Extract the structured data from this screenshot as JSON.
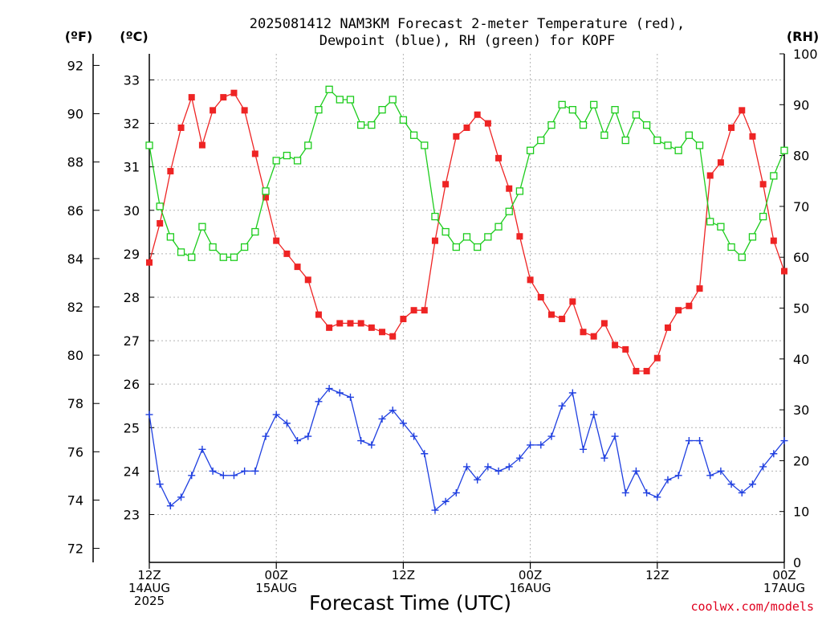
{
  "title_line1": "2025081412 NAM3KM Forecast 2-meter Temperature (red),",
  "title_line2": "Dewpoint (blue), RH (green) for KOPF",
  "units": {
    "f": "(ºF)",
    "c": "(ºC)",
    "rh": "(RH)"
  },
  "xlabel": "Forecast Time (UTC)",
  "credit": "coolwx.com/models",
  "colors": {
    "temp": "#ee2424",
    "dewpoint": "#1f3fe0",
    "rh": "#1ccc1c"
  },
  "chart_data": {
    "type": "line",
    "title": "2025081412 NAM3KM Forecast 2-meter Temperature (red), Dewpoint (blue), RH (green) for KOPF",
    "xlabel": "Forecast Time (UTC)",
    "x_unit": "forecast hour from 2025-08-14 12Z",
    "xlim": [
      0,
      60
    ],
    "x_ticks": [
      {
        "hour": 0,
        "lines": [
          "12Z",
          "14AUG",
          "2025"
        ]
      },
      {
        "hour": 12,
        "lines": [
          "00Z",
          "15AUG"
        ]
      },
      {
        "hour": 24,
        "lines": [
          "12Z"
        ]
      },
      {
        "hour": 36,
        "lines": [
          "00Z",
          "16AUG"
        ]
      },
      {
        "hour": 48,
        "lines": [
          "12Z"
        ]
      },
      {
        "hour": 60,
        "lines": [
          "00Z",
          "17AUG"
        ]
      }
    ],
    "y_axes": {
      "fahrenheit": {
        "label": "(ºF)",
        "ticks": [
          "72",
          "74",
          "76",
          "78",
          "80",
          "82",
          "84",
          "86",
          "88",
          "90",
          "92"
        ]
      },
      "celsius": {
        "label": "(ºC)",
        "ylim": [
          21.9,
          33.6
        ],
        "ticks": [
          "23",
          "24",
          "25",
          "26",
          "27",
          "28",
          "29",
          "30",
          "31",
          "32",
          "33"
        ]
      },
      "rh": {
        "label": "(RH)",
        "ylim": [
          0,
          100
        ],
        "ticks": [
          "0",
          "10",
          "20",
          "30",
          "40",
          "50",
          "60",
          "70",
          "80",
          "90",
          "100"
        ]
      }
    },
    "grid": true,
    "series": [
      {
        "axis": "celsius",
        "marker": "filled-square",
        "x": [
          0,
          1,
          2,
          3,
          4,
          5,
          6,
          7,
          8,
          9,
          10,
          11,
          12,
          13,
          14,
          15,
          16,
          17,
          18,
          19,
          20,
          21,
          22,
          23,
          24,
          25,
          26,
          27,
          28,
          29,
          30,
          31,
          32,
          33,
          34,
          35,
          36,
          37,
          38,
          39,
          40,
          41,
          42,
          43,
          44,
          45,
          46,
          47,
          48,
          49,
          50,
          51,
          52,
          53,
          54,
          55,
          56,
          57,
          58,
          59,
          60
        ],
        "y": [
          28.8,
          29.7,
          30.9,
          31.9,
          32.6,
          31.5,
          32.3,
          32.6,
          32.7,
          32.3,
          31.3,
          30.3,
          29.3,
          29.0,
          28.7,
          28.4,
          27.6,
          27.3,
          27.4,
          27.4,
          27.4,
          27.3,
          27.2,
          27.1,
          27.5,
          27.7,
          27.7,
          29.3,
          30.6,
          31.7,
          31.9,
          32.2,
          32.0,
          31.2,
          30.5,
          29.4,
          28.4,
          28.0,
          27.6,
          27.5,
          27.9,
          27.2,
          27.1,
          27.4,
          26.9,
          26.8,
          26.3,
          26.3,
          26.6,
          27.3,
          27.7,
          27.8,
          28.2,
          30.8,
          31.1,
          31.9,
          32.3,
          31.7,
          30.6,
          29.3,
          28.6
        ]
      },
      {
        "axis": "celsius",
        "marker": "plus",
        "x": [
          0,
          1,
          2,
          3,
          4,
          5,
          6,
          7,
          8,
          9,
          10,
          11,
          12,
          13,
          14,
          15,
          16,
          17,
          18,
          19,
          20,
          21,
          22,
          23,
          24,
          25,
          26,
          27,
          28,
          29,
          30,
          31,
          32,
          33,
          34,
          35,
          36,
          37,
          38,
          39,
          40,
          41,
          42,
          43,
          44,
          45,
          46,
          47,
          48,
          49,
          50,
          51,
          52,
          53,
          54,
          55,
          56,
          57,
          58,
          59,
          60
        ],
        "y": [
          25.3,
          23.7,
          23.2,
          23.4,
          23.9,
          24.5,
          24.0,
          23.9,
          23.9,
          24.0,
          24.0,
          24.8,
          25.3,
          25.1,
          24.7,
          24.8,
          25.6,
          25.9,
          25.8,
          25.7,
          24.7,
          24.6,
          25.2,
          25.4,
          25.1,
          24.8,
          24.4,
          23.1,
          23.3,
          23.5,
          24.1,
          23.8,
          24.1,
          24.0,
          24.1,
          24.3,
          24.6,
          24.6,
          24.8,
          25.5,
          25.8,
          24.5,
          25.3,
          24.3,
          24.8,
          23.5,
          24.0,
          23.5,
          23.4,
          23.8,
          23.9,
          24.7,
          24.7,
          23.9,
          24.0,
          23.7,
          23.5,
          23.7,
          24.1,
          24.4,
          24.7
        ]
      },
      {
        "axis": "rh",
        "marker": "open-square",
        "x": [
          0,
          1,
          2,
          3,
          4,
          5,
          6,
          7,
          8,
          9,
          10,
          11,
          12,
          13,
          14,
          15,
          16,
          17,
          18,
          19,
          20,
          21,
          22,
          23,
          24,
          25,
          26,
          27,
          28,
          29,
          30,
          31,
          32,
          33,
          34,
          35,
          36,
          37,
          38,
          39,
          40,
          41,
          42,
          43,
          44,
          45,
          46,
          47,
          48,
          49,
          50,
          51,
          52,
          53,
          54,
          55,
          56,
          57,
          58,
          59,
          60
        ],
        "y": [
          82,
          70,
          64,
          61,
          60,
          66,
          62,
          60,
          60,
          62,
          65,
          73,
          79,
          80,
          79,
          82,
          89,
          93,
          91,
          91,
          86,
          86,
          89,
          91,
          87,
          84,
          82,
          68,
          65,
          62,
          64,
          62,
          64,
          66,
          69,
          73,
          81,
          83,
          86,
          90,
          89,
          86,
          90,
          84,
          89,
          83,
          88,
          86,
          83,
          82,
          81,
          84,
          82,
          67,
          66,
          62,
          60,
          64,
          68,
          76,
          81
        ]
      }
    ]
  }
}
